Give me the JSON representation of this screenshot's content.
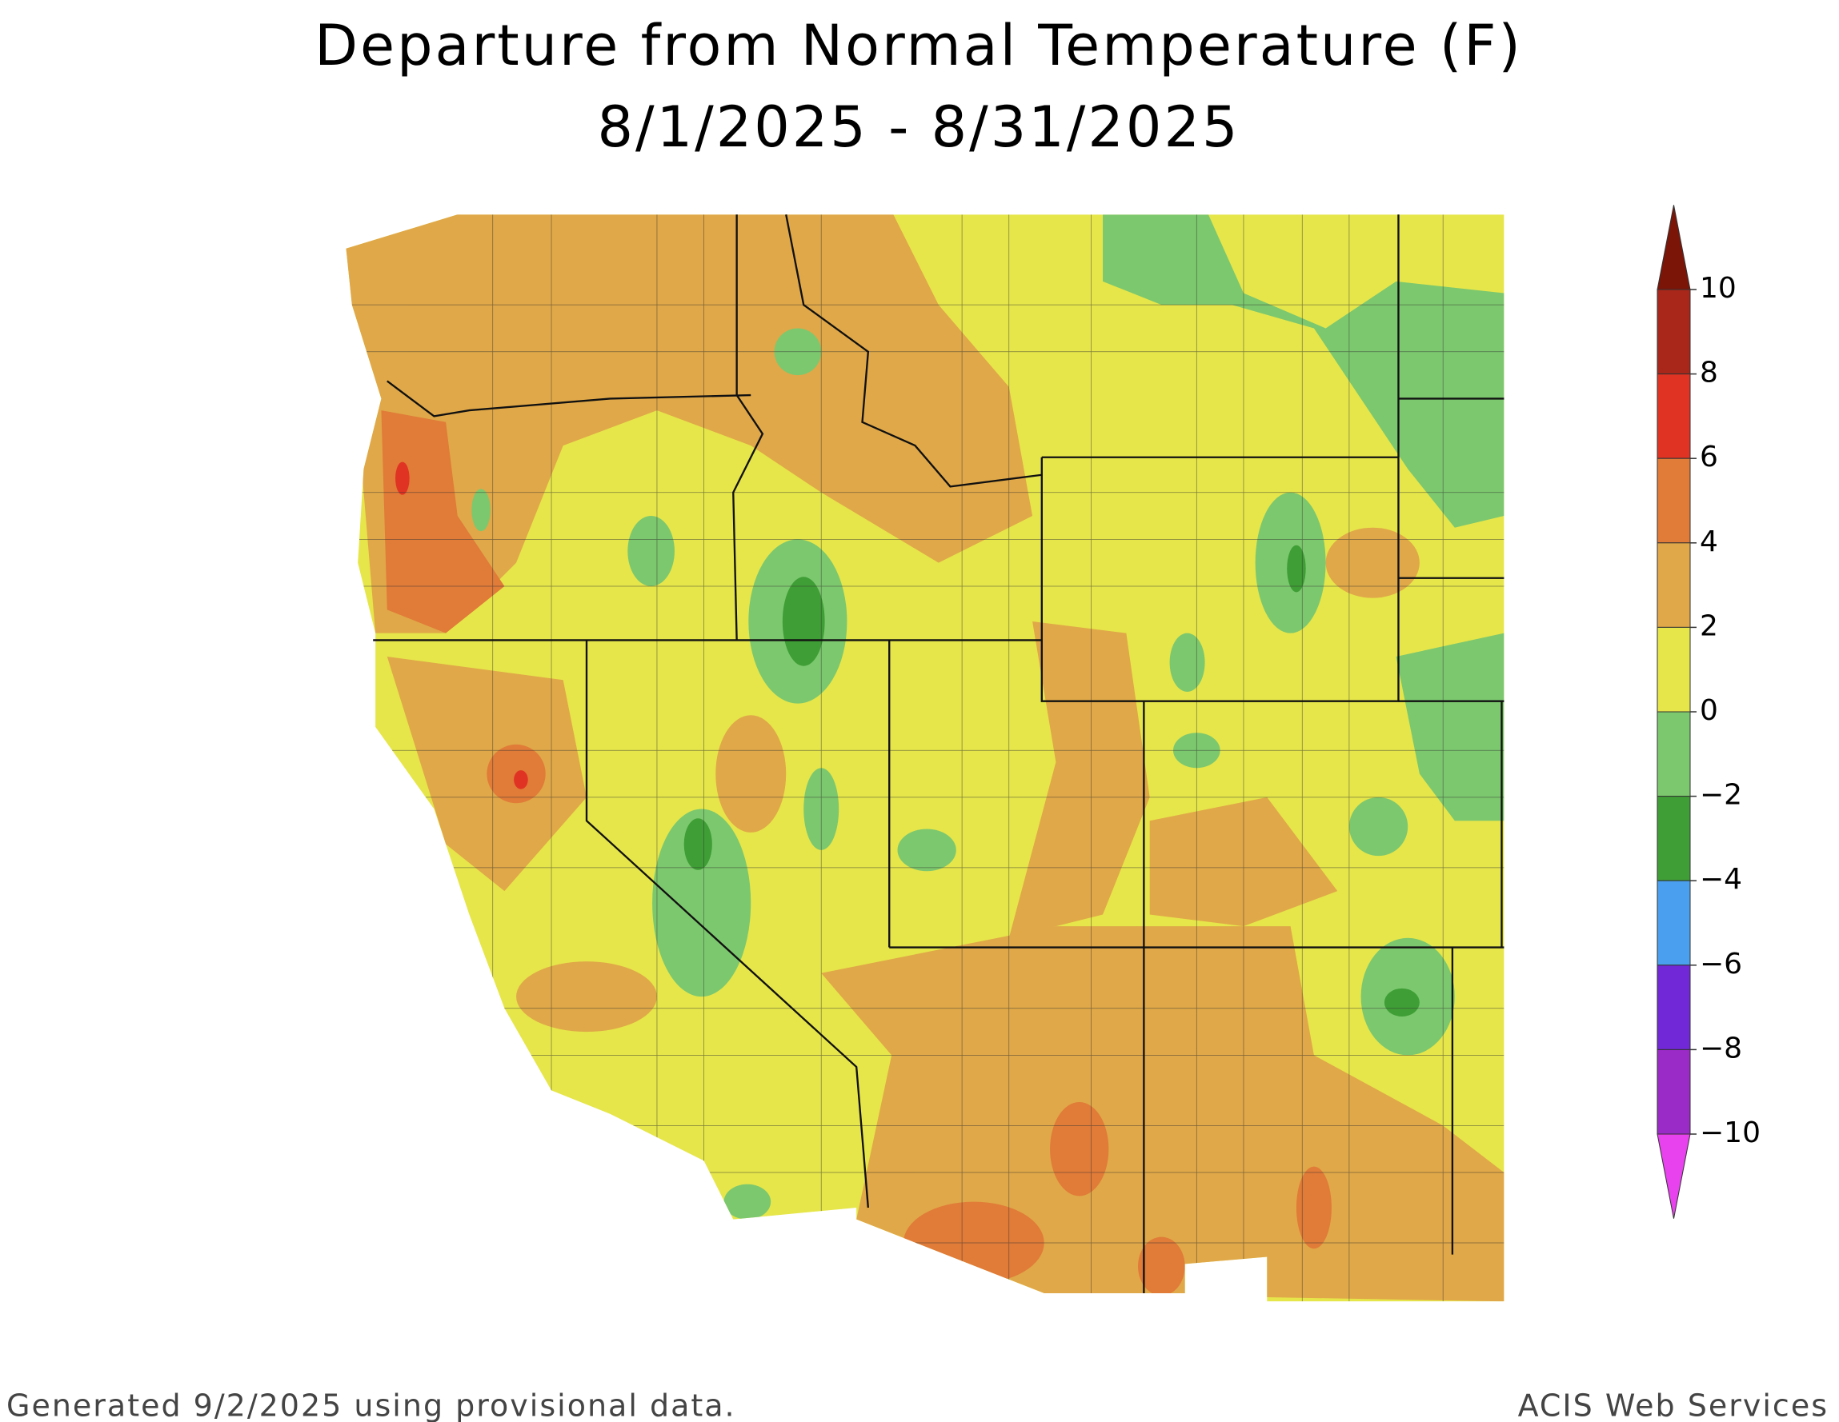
{
  "title": "Departure from Normal Temperature (F)",
  "subtitle": "8/1/2025 - 8/31/2025",
  "legend": {
    "ticks": [
      10,
      8,
      6,
      4,
      2,
      0,
      {
        "value": -2,
        "label": "−2"
      },
      {
        "value": -4,
        "label": "−4"
      },
      {
        "value": -6,
        "label": "−6"
      },
      {
        "value": -8,
        "label": "−8"
      },
      {
        "value": -10,
        "label": "−10"
      }
    ],
    "colors": [
      "#7a1508",
      "#a8261a",
      "#e03323",
      "#e07b38",
      "#e0a848",
      "#e6e64a",
      "#7cc86e",
      "#3f9e35",
      "#4aa0ef",
      "#7128d6",
      "#9a2bc6",
      "#e842ee"
    ]
  },
  "footer_left": "Generated 9/2/2025 using provisional data.",
  "footer_right": "ACIS Web Services"
}
